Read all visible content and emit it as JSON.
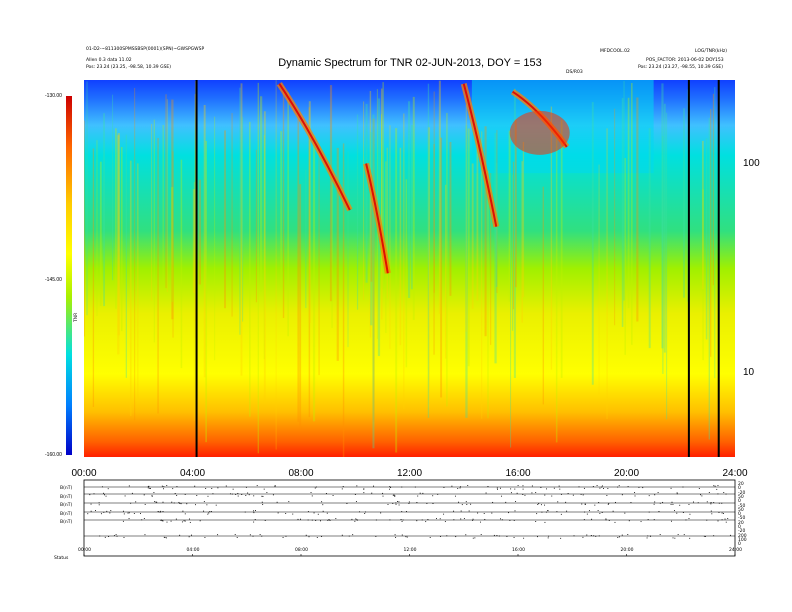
{
  "chart_data": [
    {
      "type": "heatmap",
      "title": "Dynamic Spectrum for TNR 02-JUN-2013, DOY = 153",
      "header_left": [
        "01-D2-~811300SPMSSBSP(0001)(SPN)~GWSPGWSP",
        "Allen 0.3 data 11.02",
        "Pos:   23.24 (23.25, -98.58, 10.39 GSE)"
      ],
      "header_right": [
        "MFDCOOL.02",
        "POS_FACTOR: 2013-06-02 DOY153",
        "Pos:   23.24 (23.27, -98.55, 10.39 GSE)"
      ],
      "header_far_right": "LOG/TNR(kHz)",
      "small_label_mid": "DS/R03",
      "colorbar_label": "TNR",
      "colorbar_ticks": [
        "-130.00",
        "-145.00",
        "-160.00"
      ],
      "colorbar_range": [
        -160,
        -130
      ],
      "x_ticks": [
        "00:00",
        "04:00",
        "08:00",
        "12:00",
        "16:00",
        "20:00",
        "24:00"
      ],
      "x_range_hours": [
        0,
        24
      ],
      "y_ticks": [
        "100",
        "10"
      ],
      "y_tick_values": [
        100,
        10
      ],
      "y_scale": "log",
      "y_range_khz": [
        4,
        250
      ],
      "gap_lines_hours": [
        4.15,
        22.3,
        23.4
      ],
      "bursts": [
        {
          "t_start": 7.2,
          "t_end": 9.8,
          "f_start": 240,
          "f_end": 60
        },
        {
          "t_start": 10.4,
          "t_end": 11.2,
          "f_start": 100,
          "f_end": 30
        },
        {
          "t_start": 14.0,
          "t_end": 15.2,
          "f_start": 240,
          "f_end": 50
        },
        {
          "t_start": 15.8,
          "t_end": 17.8,
          "f_start": 220,
          "f_end": 120
        }
      ]
    },
    {
      "type": "line",
      "panel": "ephemeris",
      "row_labels": [
        "B(nT)",
        "B(nT)",
        "B(nT)",
        "B(nT)",
        "B(nT)"
      ],
      "right_labels": [
        "20",
        "0",
        "-20",
        "50",
        "0",
        "-50",
        "50",
        "0",
        "-50",
        "20",
        "0",
        "-20",
        "200",
        "100",
        "0"
      ],
      "x_ticks": [
        "00:00",
        "04:00",
        "08:00",
        "12:00",
        "16:00",
        "20:00",
        "24:00"
      ],
      "footer_label": "Status"
    }
  ]
}
